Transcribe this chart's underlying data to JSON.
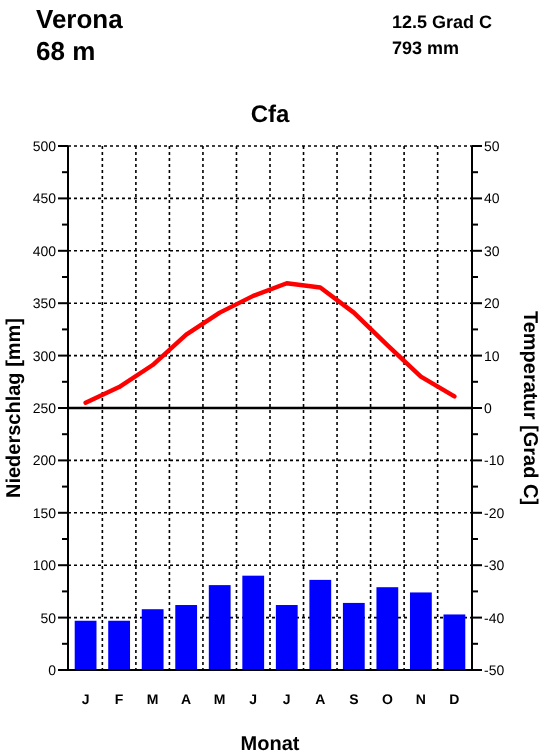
{
  "chart_data": {
    "type": "bar",
    "title": "Cfa",
    "xlabel": "Monat",
    "ylabel": "Niederschlag [mm]",
    "y2label": "Temperatur [Grad C]",
    "annotations": [
      "Verona",
      "68 m",
      "12.5 Grad C",
      "793 mm"
    ],
    "categories": [
      "J",
      "F",
      "M",
      "A",
      "M",
      "J",
      "J",
      "A",
      "S",
      "O",
      "N",
      "D"
    ],
    "series": [
      {
        "color": "#0000ff",
        "values": [
          47,
          47,
          58,
          62,
          81,
          90,
          62,
          86,
          64,
          79,
          74,
          53
        ]
      },
      {
        "type": "line",
        "axis": "y2",
        "color": "#ff0000",
        "values": [
          1,
          4,
          8.2,
          14,
          18.2,
          21.4,
          23.8,
          23,
          18.2,
          12,
          6,
          2.2
        ]
      }
    ],
    "ylim": [
      0,
      500
    ],
    "yticks": [
      0,
      {
        "value": 25,
        "label": null
      },
      50,
      {
        "value": 75,
        "label": null
      },
      100,
      {
        "value": 125,
        "label": null
      },
      150,
      {
        "value": 175,
        "label": null
      },
      200,
      {
        "value": 225,
        "label": null
      },
      250,
      {
        "value": 275,
        "label": null
      },
      300,
      {
        "value": 325,
        "label": null
      },
      350,
      {
        "value": 375,
        "label": null
      },
      400,
      {
        "value": 425,
        "label": null
      },
      450,
      {
        "value": 475,
        "label": null
      },
      500
    ],
    "y2lim": [
      -50,
      50
    ],
    "y2ticks": [
      -50,
      {
        "value": -45,
        "label": null
      },
      -40,
      {
        "value": -35,
        "label": null
      },
      -30,
      {
        "value": -25,
        "label": null
      },
      -20,
      {
        "value": -15,
        "label": null
      },
      -10,
      {
        "value": -5,
        "label": null
      },
      0,
      {
        "value": 5,
        "label": null
      },
      10,
      {
        "value": 15,
        "label": null
      },
      20,
      {
        "value": 25,
        "label": null
      },
      30,
      {
        "value": 35,
        "label": null
      },
      40,
      {
        "value": 45,
        "label": null
      },
      50
    ],
    "ref_lines": [
      {
        "axis": "y2",
        "value": 0,
        "color": "#000000"
      }
    ],
    "grid": true,
    "marker": "none",
    "line_style": "solid"
  }
}
